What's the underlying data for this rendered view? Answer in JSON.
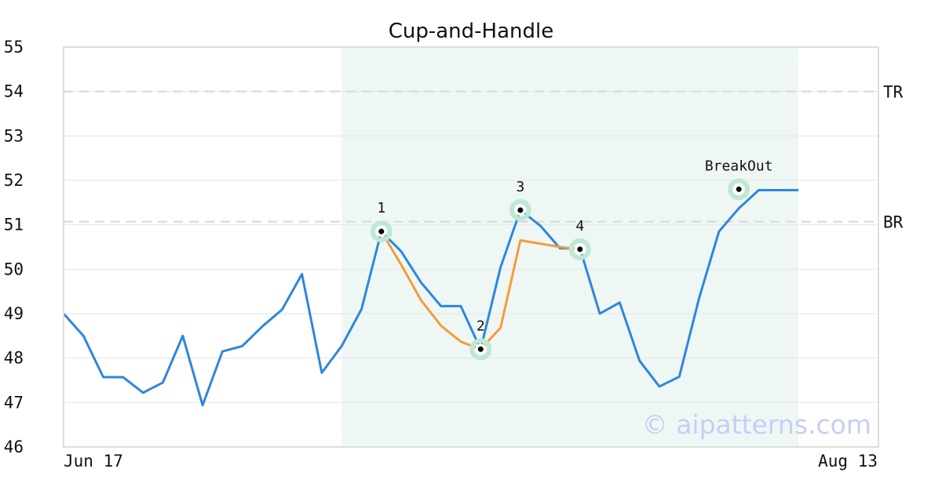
{
  "chart_data": {
    "type": "line",
    "title": "Cup-and-Handle",
    "x_tick_labels": {
      "first": "Jun 17",
      "last": "Aug 13"
    },
    "ylim": [
      46,
      55
    ],
    "y_ticks": [
      46,
      47,
      48,
      49,
      50,
      51,
      52,
      53,
      54,
      55
    ],
    "grid": true,
    "pattern_region": {
      "start_index": 14,
      "end_index": 37
    },
    "series": [
      {
        "color": "#2e86de",
        "values": [
          49.0,
          48.5,
          47.57,
          47.57,
          47.22,
          47.45,
          48.5,
          46.94,
          48.15,
          48.27,
          48.71,
          49.09,
          49.89,
          47.67,
          48.27,
          49.1,
          50.85,
          50.4,
          49.7,
          49.17,
          49.17,
          48.2,
          50.04,
          51.33,
          50.98,
          50.47,
          50.47,
          49.0,
          49.25,
          47.94,
          47.36,
          47.58,
          49.35,
          50.85,
          51.37,
          51.78,
          51.78,
          51.78
        ]
      },
      {
        "color": "#f39c3d",
        "points": [
          [
            16,
            50.85
          ],
          [
            17,
            50.1
          ],
          [
            18,
            49.3
          ],
          [
            19,
            48.73
          ],
          [
            20,
            48.37
          ],
          [
            21,
            48.2
          ],
          [
            22,
            48.68
          ],
          [
            23,
            50.65
          ],
          [
            25,
            50.5
          ],
          [
            26,
            50.45
          ]
        ]
      }
    ],
    "reference_lines": [
      {
        "label": "TR",
        "value": 54.0,
        "color": "#dddddd"
      },
      {
        "label": "BR",
        "value": 51.07,
        "color": "#dddddd"
      }
    ],
    "annotations": [
      {
        "label": "1",
        "index": 16,
        "value": 50.85
      },
      {
        "label": "2",
        "index": 21,
        "value": 48.2
      },
      {
        "label": "3",
        "index": 23,
        "value": 51.33
      },
      {
        "label": "4",
        "index": 26,
        "value": 50.45
      },
      {
        "label": "BreakOut",
        "index": 34,
        "value": 51.8
      }
    ],
    "colors": {
      "region": "#eef7f3",
      "marker_halo": "#bfe8d3",
      "grid": "#e6e6e6",
      "frame": "#dddddd"
    }
  },
  "watermark": "© aipatterns.com"
}
